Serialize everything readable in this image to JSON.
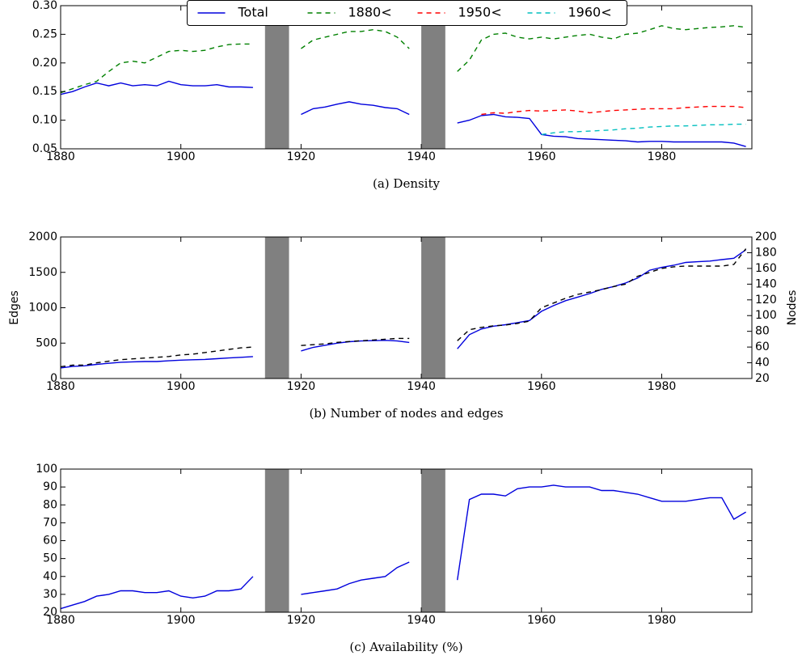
{
  "chart_data": [
    {
      "type": "line",
      "caption": "(a) Density",
      "x": [
        1880,
        1882,
        1884,
        1886,
        1888,
        1890,
        1892,
        1894,
        1896,
        1898,
        1900,
        1902,
        1904,
        1906,
        1908,
        1910,
        1912,
        1914,
        1916,
        1918,
        1920,
        1922,
        1924,
        1926,
        1928,
        1930,
        1932,
        1934,
        1936,
        1938,
        1940,
        1942,
        1944,
        1946,
        1948,
        1950,
        1952,
        1954,
        1956,
        1958,
        1960,
        1962,
        1964,
        1966,
        1968,
        1970,
        1972,
        1974,
        1976,
        1978,
        1980,
        1982,
        1984,
        1986,
        1988,
        1990,
        1992,
        1994
      ],
      "xlim": [
        1880,
        1995
      ],
      "xticks": [
        1880,
        1900,
        1920,
        1940,
        1960,
        1980
      ],
      "ylim": [
        0.05,
        0.3
      ],
      "yticks": [
        0.05,
        {
          "value": 0.1,
          "label": "0.10"
        },
        0.15,
        {
          "value": 0.2,
          "label": "0.20"
        },
        0.25,
        {
          "value": 0.3,
          "label": "0.30"
        }
      ],
      "shaded": [
        [
          1914,
          1918
        ],
        [
          1940,
          1944
        ]
      ],
      "shade_color": "#808080",
      "legend": "upper center",
      "series": [
        {
          "name": "Total",
          "color": "#0000dd",
          "linestyle": "solid",
          "values": [
            0.145,
            0.15,
            0.158,
            0.165,
            0.16,
            0.165,
            0.16,
            0.162,
            0.16,
            0.168,
            0.162,
            0.16,
            0.16,
            0.162,
            0.158,
            0.158,
            0.157,
            null,
            null,
            null,
            0.11,
            0.12,
            0.123,
            0.128,
            0.132,
            0.128,
            0.126,
            0.122,
            0.12,
            0.11,
            null,
            null,
            null,
            0.095,
            0.1,
            0.108,
            0.11,
            0.106,
            0.105,
            0.103,
            0.075,
            0.072,
            0.071,
            0.068,
            0.067,
            0.066,
            0.065,
            0.064,
            0.062,
            0.063,
            0.063,
            0.062,
            0.062,
            0.062,
            0.062,
            0.062,
            0.06,
            0.054
          ]
        },
        {
          "name": "1880<",
          "color": "#008000",
          "linestyle": "dashed",
          "values": [
            0.148,
            0.155,
            0.162,
            0.168,
            0.185,
            0.2,
            0.203,
            0.2,
            0.21,
            0.22,
            0.222,
            0.22,
            0.222,
            0.228,
            0.232,
            0.233,
            0.233,
            null,
            null,
            null,
            0.225,
            0.24,
            0.245,
            0.25,
            0.255,
            0.255,
            0.258,
            0.255,
            0.245,
            0.225,
            null,
            null,
            null,
            0.185,
            0.205,
            0.24,
            0.25,
            0.252,
            0.245,
            0.242,
            0.245,
            0.242,
            0.245,
            0.248,
            0.25,
            0.245,
            0.242,
            0.25,
            0.252,
            0.258,
            0.265,
            0.26,
            0.258,
            0.26,
            0.262,
            0.263,
            0.265,
            0.262
          ]
        },
        {
          "name": "1950<",
          "color": "#ff0000",
          "linestyle": "dashed",
          "values": [
            null,
            null,
            null,
            null,
            null,
            null,
            null,
            null,
            null,
            null,
            null,
            null,
            null,
            null,
            null,
            null,
            null,
            null,
            null,
            null,
            null,
            null,
            null,
            null,
            null,
            null,
            null,
            null,
            null,
            null,
            null,
            null,
            null,
            null,
            null,
            0.11,
            0.113,
            0.112,
            0.115,
            0.117,
            0.116,
            0.117,
            0.118,
            0.116,
            0.113,
            0.115,
            0.117,
            0.118,
            0.119,
            0.12,
            0.12,
            0.12,
            0.122,
            0.123,
            0.124,
            0.124,
            0.124,
            0.122
          ]
        },
        {
          "name": "1960<",
          "color": "#00bfbf",
          "linestyle": "dashed",
          "values": [
            null,
            null,
            null,
            null,
            null,
            null,
            null,
            null,
            null,
            null,
            null,
            null,
            null,
            null,
            null,
            null,
            null,
            null,
            null,
            null,
            null,
            null,
            null,
            null,
            null,
            null,
            null,
            null,
            null,
            null,
            null,
            null,
            null,
            null,
            null,
            null,
            null,
            null,
            null,
            null,
            0.075,
            0.078,
            0.08,
            0.08,
            0.081,
            0.082,
            0.083,
            0.085,
            0.086,
            0.088,
            0.089,
            0.09,
            0.09,
            0.091,
            0.092,
            0.092,
            0.093,
            0.093
          ]
        }
      ]
    },
    {
      "type": "line",
      "caption": "(b) Number of nodes and edges",
      "ylabel": "Edges",
      "y2label": "Nodes",
      "x": [
        1880,
        1882,
        1884,
        1886,
        1888,
        1890,
        1892,
        1894,
        1896,
        1898,
        1900,
        1902,
        1904,
        1906,
        1908,
        1910,
        1912,
        1914,
        1916,
        1918,
        1920,
        1922,
        1924,
        1926,
        1928,
        1930,
        1932,
        1934,
        1936,
        1938,
        1940,
        1942,
        1944,
        1946,
        1948,
        1950,
        1952,
        1954,
        1956,
        1958,
        1960,
        1962,
        1964,
        1966,
        1968,
        1970,
        1972,
        1974,
        1976,
        1978,
        1980,
        1982,
        1984,
        1986,
        1988,
        1990,
        1992,
        1994
      ],
      "xlim": [
        1880,
        1995
      ],
      "xticks": [
        1880,
        1900,
        1920,
        1940,
        1960,
        1980
      ],
      "ylim": [
        0,
        2000
      ],
      "yticks": [
        0,
        500,
        1000,
        1500,
        2000
      ],
      "y2lim": [
        20,
        200
      ],
      "y2ticks": [
        20,
        40,
        60,
        80,
        100,
        120,
        140,
        160,
        180,
        200
      ],
      "shaded": [
        [
          1914,
          1918
        ],
        [
          1940,
          1944
        ]
      ],
      "shade_color": "#808080",
      "series": [
        {
          "color": "#0000dd",
          "linestyle": "solid",
          "values": [
            150,
            170,
            180,
            200,
            215,
            230,
            235,
            240,
            240,
            250,
            260,
            265,
            270,
            280,
            290,
            300,
            310,
            null,
            null,
            null,
            390,
            440,
            470,
            500,
            520,
            530,
            535,
            540,
            530,
            510,
            null,
            null,
            null,
            420,
            620,
            700,
            740,
            760,
            790,
            820,
            950,
            1030,
            1100,
            1150,
            1200,
            1260,
            1300,
            1350,
            1420,
            1530,
            1570,
            1600,
            1640,
            1650,
            1660,
            1680,
            1700,
            1820
          ]
        },
        {
          "color": "#000000",
          "linestyle": "dashed",
          "axis": "y2",
          "values": [
            35,
            37,
            37,
            40,
            42,
            44,
            45,
            46,
            47,
            48,
            50,
            51,
            53,
            55,
            57,
            59,
            60,
            null,
            null,
            null,
            62,
            63,
            64,
            66,
            67,
            68,
            69,
            70,
            71,
            71,
            null,
            null,
            null,
            68,
            82,
            85,
            87,
            88,
            90,
            93,
            110,
            116,
            122,
            127,
            130,
            133,
            137,
            140,
            150,
            155,
            160,
            162,
            163,
            163,
            163,
            163,
            165,
            185
          ]
        }
      ]
    },
    {
      "type": "line",
      "caption": "(c) Availability (%)",
      "x": [
        1880,
        1882,
        1884,
        1886,
        1888,
        1890,
        1892,
        1894,
        1896,
        1898,
        1900,
        1902,
        1904,
        1906,
        1908,
        1910,
        1912,
        1914,
        1916,
        1918,
        1920,
        1922,
        1924,
        1926,
        1928,
        1930,
        1932,
        1934,
        1936,
        1938,
        1940,
        1942,
        1944,
        1946,
        1948,
        1950,
        1952,
        1954,
        1956,
        1958,
        1960,
        1962,
        1964,
        1966,
        1968,
        1970,
        1972,
        1974,
        1976,
        1978,
        1980,
        1982,
        1984,
        1986,
        1988,
        1990,
        1992,
        1994
      ],
      "xlim": [
        1880,
        1995
      ],
      "xticks": [
        1880,
        1900,
        1920,
        1940,
        1960,
        1980
      ],
      "ylim": [
        20,
        100
      ],
      "yticks": [
        20,
        30,
        40,
        50,
        60,
        70,
        80,
        90,
        100
      ],
      "shaded": [
        [
          1914,
          1918
        ],
        [
          1940,
          1944
        ]
      ],
      "shade_color": "#808080",
      "series": [
        {
          "color": "#0000dd",
          "linestyle": "solid",
          "values": [
            22,
            24,
            26,
            29,
            30,
            32,
            32,
            31,
            31,
            32,
            29,
            28,
            29,
            32,
            32,
            33,
            40,
            null,
            null,
            null,
            30,
            31,
            32,
            33,
            36,
            38,
            39,
            40,
            45,
            48,
            null,
            null,
            null,
            38,
            83,
            86,
            86,
            85,
            89,
            90,
            90,
            91,
            90,
            90,
            90,
            88,
            88,
            87,
            86,
            84,
            82,
            82,
            82,
            83,
            84,
            84,
            72,
            76
          ]
        }
      ]
    }
  ]
}
